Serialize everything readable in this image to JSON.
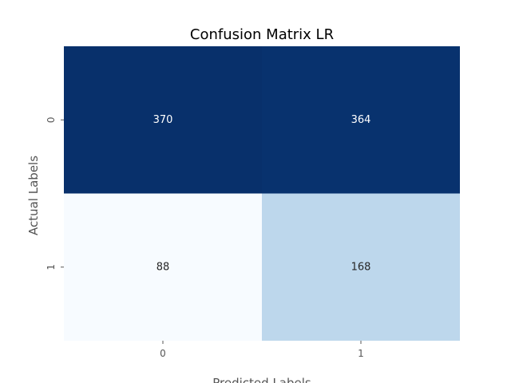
{
  "chart_data": {
    "type": "heatmap",
    "title": "Confusion Matrix LR",
    "xlabel": "Predicted Labels",
    "ylabel": "Actual Labels",
    "x_categories": [
      "0",
      "1"
    ],
    "y_categories": [
      "0",
      "1"
    ],
    "values": [
      [
        370,
        364
      ],
      [
        88,
        168
      ]
    ],
    "colormap": "Blues",
    "colorbar": false,
    "colors": {
      "cell_0_0": "#08306b",
      "cell_0_1": "#08326e",
      "cell_1_0": "#f7fbff",
      "cell_1_1": "#bdd7ec",
      "label_on_dark": "#ffffff",
      "label_on_light": "#262626"
    }
  }
}
